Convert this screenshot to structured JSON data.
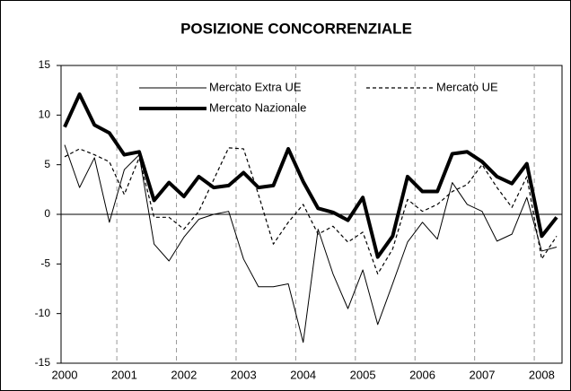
{
  "chart_data": {
    "type": "line",
    "title": "POSIZIONE CONCORRENZIALE",
    "categories": [
      "2000",
      null,
      null,
      null,
      "2001",
      null,
      null,
      null,
      "2002",
      null,
      null,
      null,
      "2003",
      null,
      null,
      null,
      "2004",
      null,
      null,
      null,
      "2005",
      null,
      null,
      null,
      "2006",
      null,
      null,
      null,
      "2007",
      null,
      null,
      null,
      "2008",
      null
    ],
    "series": [
      {
        "name": "Mercato Extra UE",
        "color": "#000000",
        "line_width": 1,
        "dashed": false,
        "values": [
          7.0,
          2.7,
          5.7,
          -0.8,
          4.5,
          6.0,
          -3.0,
          -4.7,
          -2.3,
          -0.5,
          0.0,
          0.3,
          -4.5,
          -7.3,
          -7.3,
          -7.0,
          -12.9,
          -1.5,
          -6.0,
          -9.5,
          -5.6,
          -11.1,
          -7.0,
          -2.8,
          -0.8,
          -2.5,
          3.2,
          1.0,
          0.3,
          -2.7,
          -2.0,
          1.7,
          -3.7,
          -3.3
        ]
      },
      {
        "name": "Mercato UE",
        "color": "#000000",
        "line_width": 1.2,
        "dashed": true,
        "values": [
          5.8,
          6.6,
          6.0,
          5.3,
          2.0,
          5.7,
          -0.3,
          -0.3,
          -1.5,
          0.3,
          3.5,
          6.7,
          6.6,
          2.0,
          -3.0,
          -0.8,
          1.0,
          -2.0,
          -1.2,
          -2.8,
          -1.8,
          -6.0,
          -3.5,
          1.5,
          0.3,
          1.0,
          2.3,
          3.0,
          5.0,
          2.7,
          0.7,
          3.8,
          -4.5,
          -2.2
        ]
      },
      {
        "name": "Mercato Nazionale",
        "color": "#000000",
        "line_width": 4,
        "dashed": false,
        "values": [
          8.8,
          12.1,
          9.0,
          8.2,
          6.0,
          6.3,
          1.4,
          3.2,
          1.8,
          3.8,
          2.7,
          2.9,
          4.2,
          2.7,
          2.9,
          6.6,
          3.3,
          0.6,
          0.2,
          -0.6,
          1.7,
          -4.3,
          -2.2,
          3.8,
          2.3,
          2.3,
          6.1,
          6.3,
          5.3,
          3.8,
          3.1,
          5.1,
          -2.2,
          -0.3
        ]
      }
    ],
    "ylim": [
      -15,
      15
    ],
    "yticks": [
      -15,
      -10,
      -5,
      0,
      5,
      10,
      15
    ],
    "grid": "x-dashed"
  }
}
